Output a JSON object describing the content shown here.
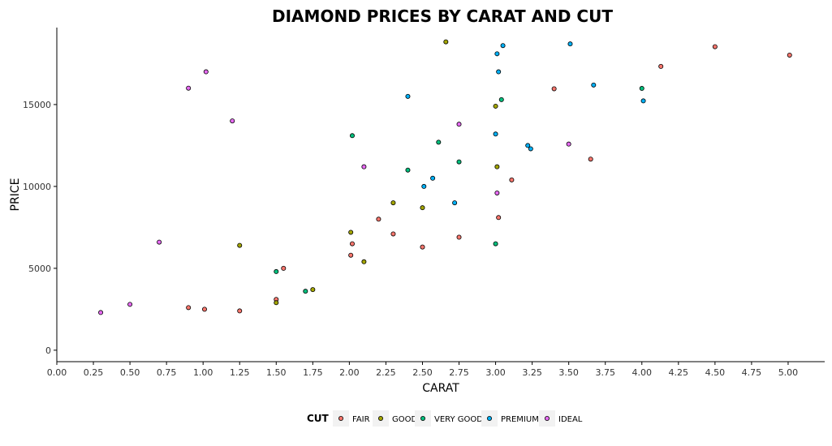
{
  "chart_data": {
    "type": "scatter",
    "title": "DIAMOND PRICES BY CARAT AND CUT",
    "xlabel": "CARAT",
    "ylabel": "PRICE",
    "xlim": [
      0,
      5.25
    ],
    "ylim": [
      -700,
      19700
    ],
    "x_ticks": [
      0,
      0.25,
      0.5,
      0.75,
      1,
      1.25,
      1.5,
      1.75,
      2,
      2.25,
      2.5,
      2.75,
      3,
      3.25,
      3.5,
      3.75,
      4,
      4.25,
      4.5,
      4.75,
      5
    ],
    "x_tick_labels": [
      "0.00",
      "0.25",
      "0.50",
      "0.75",
      "1.00",
      "1.25",
      "1.50",
      "1.75",
      "2.00",
      "2.25",
      "2.50",
      "2.75",
      "3.00",
      "3.25",
      "3.50",
      "3.75",
      "4.00",
      "4.25",
      "4.50",
      "4.75",
      "5.00"
    ],
    "y_ticks": [
      0,
      5000,
      10000,
      15000
    ],
    "y_tick_labels": [
      "0",
      "5000",
      "10000",
      "15000"
    ],
    "grid": false,
    "legend": {
      "title": "CUT",
      "position": "bottom",
      "entries": [
        {
          "label": "FAIR",
          "color": "#F8766D"
        },
        {
          "label": "GOOD",
          "color": "#A3A500"
        },
        {
          "label": "VERY GOOD",
          "color": "#00BF7D"
        },
        {
          "label": "PREMIUM",
          "color": "#00B0F6"
        },
        {
          "label": "IDEAL",
          "color": "#E76BF3"
        }
      ]
    },
    "series": [
      {
        "name": "FAIR",
        "color": "#F8766D",
        "points": [
          [
            4.5,
            18531
          ],
          [
            5.01,
            18018
          ],
          [
            4.13,
            17329
          ],
          [
            3.4,
            15964
          ],
          [
            3.65,
            11668
          ],
          [
            2.75,
            6900
          ],
          [
            2.5,
            6300
          ],
          [
            2.01,
            5800
          ],
          [
            3.02,
            8100
          ],
          [
            2.02,
            6500
          ],
          [
            1.5,
            3100
          ],
          [
            1.01,
            2500
          ],
          [
            1.25,
            2400
          ],
          [
            0.9,
            2600
          ],
          [
            3.11,
            10400
          ],
          [
            2.3,
            7100
          ],
          [
            2.2,
            8000
          ],
          [
            1.55,
            5000
          ]
        ]
      },
      {
        "name": "GOOD",
        "color": "#A3A500",
        "points": [
          [
            2.66,
            18830
          ],
          [
            3.01,
            11200
          ],
          [
            3.0,
            14900
          ],
          [
            2.5,
            8700
          ],
          [
            2.01,
            7200
          ],
          [
            1.5,
            2900
          ],
          [
            1.25,
            6400
          ],
          [
            1.75,
            3700
          ],
          [
            2.1,
            5400
          ],
          [
            2.3,
            9000
          ]
        ]
      },
      {
        "name": "VERY GOOD",
        "color": "#00BF7D",
        "points": [
          [
            4.0,
            15984
          ],
          [
            3.0,
            6500
          ],
          [
            2.75,
            11500
          ],
          [
            2.61,
            12700
          ],
          [
            3.04,
            15300
          ],
          [
            1.5,
            4800
          ],
          [
            1.7,
            3600
          ],
          [
            2.02,
            13100
          ],
          [
            2.4,
            11000
          ]
        ]
      },
      {
        "name": "PREMIUM",
        "color": "#00B0F6",
        "points": [
          [
            4.01,
            15223
          ],
          [
            3.67,
            16193
          ],
          [
            3.51,
            18701
          ],
          [
            3.24,
            12300
          ],
          [
            3.05,
            18600
          ],
          [
            3.01,
            18100
          ],
          [
            3.0,
            13200
          ],
          [
            2.72,
            9000
          ],
          [
            2.57,
            10500
          ],
          [
            2.51,
            10000
          ],
          [
            2.4,
            15500
          ],
          [
            3.22,
            12500
          ],
          [
            3.02,
            17000
          ]
        ]
      },
      {
        "name": "IDEAL",
        "color": "#E76BF3",
        "points": [
          [
            3.5,
            12587
          ],
          [
            3.01,
            9600
          ],
          [
            2.75,
            13800
          ],
          [
            0.7,
            6600
          ],
          [
            0.3,
            2300
          ],
          [
            0.5,
            2800
          ],
          [
            1.02,
            17000
          ],
          [
            0.9,
            16000
          ],
          [
            1.2,
            14000
          ],
          [
            2.1,
            11200
          ]
        ]
      }
    ]
  }
}
